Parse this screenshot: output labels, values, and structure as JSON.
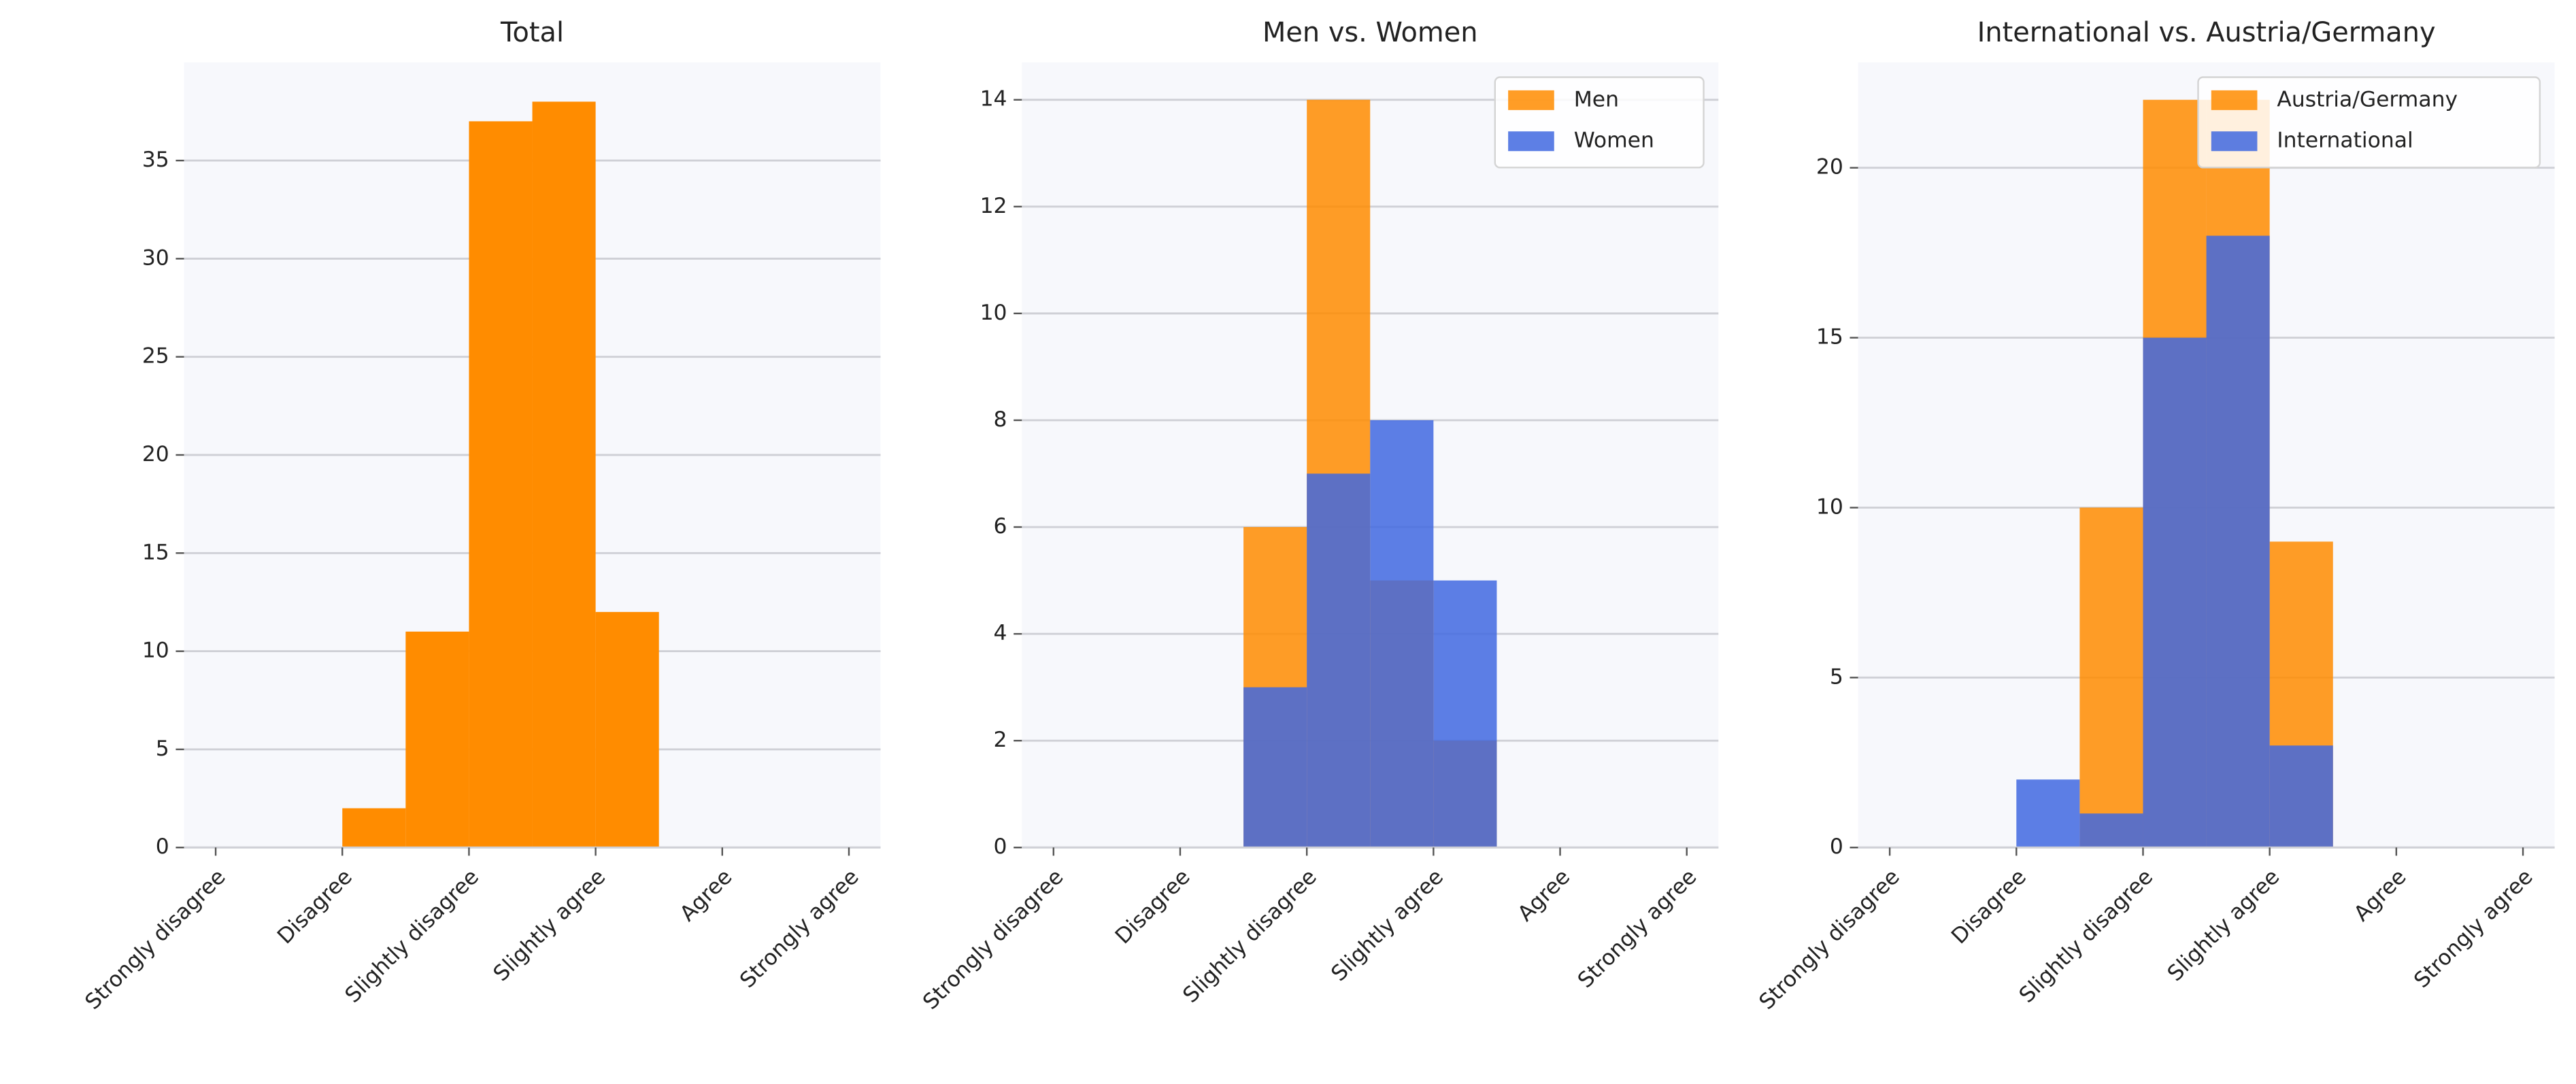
{
  "chart_data": [
    {
      "type": "histogram",
      "title": "Total",
      "bins": [
        2,
        2.5,
        3,
        3.5,
        4,
        4.5
      ],
      "values": [
        2,
        11,
        37,
        38,
        12
      ],
      "color": "#ff8c00",
      "xlim": [
        0.75,
        6.25
      ],
      "xticks": [
        {
          "value": 1,
          "label": "Strongly disagree"
        },
        {
          "value": 2,
          "label": "Disagree"
        },
        {
          "value": 3,
          "label": "Slightly disagree"
        },
        {
          "value": 4,
          "label": "Slightly agree"
        },
        {
          "value": 5,
          "label": "Agree"
        },
        {
          "value": 6,
          "label": "Strongly agree"
        }
      ],
      "ylim": [
        0,
        40
      ],
      "yticks": [
        0,
        5,
        10,
        15,
        20,
        25,
        30,
        35
      ],
      "grid": true
    },
    {
      "type": "histogram",
      "title": "Men vs. Women",
      "bins": [
        2,
        2.5,
        3,
        3.5,
        4,
        4.5
      ],
      "series": [
        {
          "name": "Men",
          "color": "#ff8c00",
          "opacity": 0.85,
          "values": [
            0,
            6,
            14,
            5,
            2
          ]
        },
        {
          "name": "Women",
          "color": "#4169e1",
          "opacity": 0.85,
          "values": [
            0,
            3,
            7,
            8,
            5
          ]
        }
      ],
      "xlim": [
        0.75,
        6.25
      ],
      "xticks": [
        {
          "value": 1,
          "label": "Strongly disagree"
        },
        {
          "value": 2,
          "label": "Disagree"
        },
        {
          "value": 3,
          "label": "Slightly disagree"
        },
        {
          "value": 4,
          "label": "Slightly agree"
        },
        {
          "value": 5,
          "label": "Agree"
        },
        {
          "value": 6,
          "label": "Strongly agree"
        }
      ],
      "ylim": [
        0,
        14.7
      ],
      "yticks": [
        0,
        2,
        4,
        6,
        8,
        10,
        12,
        14
      ],
      "grid": true,
      "legend": "upper right"
    },
    {
      "type": "histogram",
      "title": "International vs. Austria/Germany",
      "bins": [
        2,
        2.5,
        3,
        3.5,
        4,
        4.5
      ],
      "series": [
        {
          "name": "Austria/Germany",
          "color": "#ff8c00",
          "opacity": 0.85,
          "values": [
            0,
            10,
            22,
            22,
            9
          ]
        },
        {
          "name": "International",
          "color": "#4169e1",
          "opacity": 0.85,
          "values": [
            2,
            1,
            15,
            18,
            3
          ]
        }
      ],
      "xlim": [
        0.75,
        6.25
      ],
      "xticks": [
        {
          "value": 1,
          "label": "Strongly disagree"
        },
        {
          "value": 2,
          "label": "Disagree"
        },
        {
          "value": 3,
          "label": "Slightly disagree"
        },
        {
          "value": 4,
          "label": "Slightly agree"
        },
        {
          "value": 5,
          "label": "Agree"
        },
        {
          "value": 6,
          "label": "Strongly agree"
        }
      ],
      "ylim": [
        0,
        23.1
      ],
      "yticks": [
        0,
        5,
        10,
        15,
        20
      ],
      "grid": true,
      "legend": "upper right"
    }
  ]
}
